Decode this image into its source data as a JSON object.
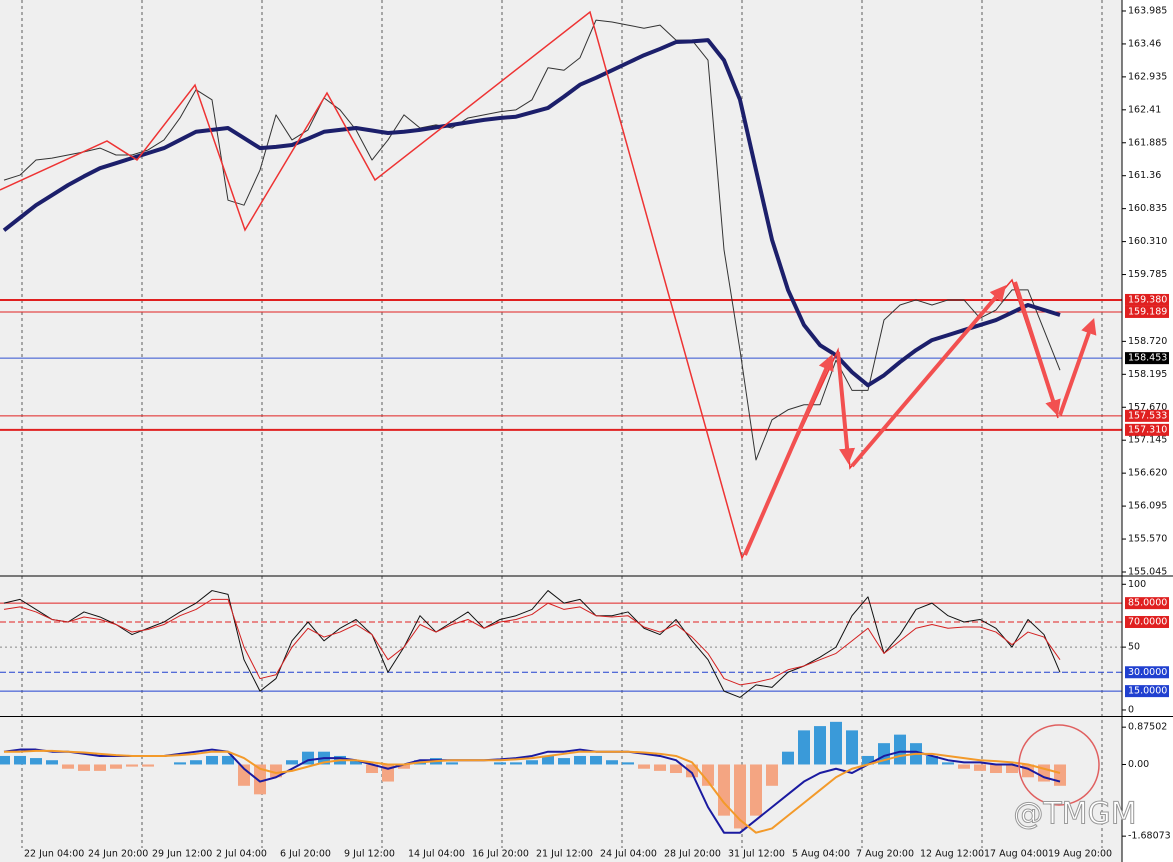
{
  "chart_data": [
    {
      "type": "line",
      "ylim": [
        154.997,
        164.16
      ],
      "yticks": [
        163.985,
        163.46,
        162.935,
        162.41,
        161.885,
        161.36,
        160.835,
        {
          "value": 160.31,
          "label": "160.310"
        },
        159.785,
        {
          "value": 158.72,
          "label": "158.720"
        },
        158.195,
        {
          "value": 157.67,
          "label": "157.670"
        },
        157.145,
        {
          "value": 156.62,
          "label": "156.620"
        },
        156.095,
        {
          "value": 155.57,
          "label": "155.570"
        },
        155.045
      ],
      "series": [
        {
          "color": "#333333",
          "values": [
            161.29,
            161.37,
            161.61,
            161.64,
            161.69,
            161.74,
            161.8,
            161.69,
            161.69,
            161.77,
            161.93,
            162.28,
            162.73,
            162.57,
            160.97,
            160.89,
            161.45,
            162.33,
            161.93,
            162.09,
            162.6,
            162.41,
            162.09,
            161.61,
            161.93,
            162.33,
            162.12,
            162.17,
            162.12,
            162.28,
            162.33,
            162.38,
            162.41,
            162.57,
            163.08,
            163.04,
            163.24,
            163.84,
            163.81,
            163.76,
            163.71,
            163.76,
            163.52,
            163.52,
            163.2,
            160.18,
            158.58,
            156.83,
            157.47,
            157.63,
            157.71,
            157.71,
            158.42,
            157.94,
            157.94,
            159.06,
            159.3,
            159.38,
            159.3,
            159.38,
            159.38,
            159.09,
            159.22,
            159.54,
            159.54,
            158.9,
            158.26
          ]
        },
        {
          "color": "#1c1f6b",
          "values": [
            160.49,
            160.69,
            160.89,
            161.05,
            161.21,
            161.35,
            161.48,
            161.56,
            161.64,
            161.72,
            161.8,
            161.93,
            162.06,
            162.09,
            162.12,
            161.96,
            161.8,
            161.82,
            161.85,
            161.95,
            162.06,
            162.09,
            162.12,
            162.08,
            162.04,
            162.06,
            162.09,
            162.13,
            162.17,
            162.21,
            162.25,
            162.28,
            162.3,
            162.37,
            162.44,
            162.62,
            162.81,
            162.92,
            163.04,
            163.16,
            163.28,
            163.38,
            163.49,
            163.5,
            163.52,
            163.2,
            162.57,
            161.45,
            160.34,
            159.54,
            158.98,
            158.66,
            158.5,
            158.23,
            158.02,
            158.18,
            158.39,
            158.58,
            158.74,
            158.82,
            158.9,
            158.98,
            159.06,
            159.18,
            159.3,
            159.22,
            159.14
          ]
        }
      ],
      "levels": [
        {
          "value": 159.38,
          "label": "159.380",
          "color": "#e02020",
          "width": 2
        },
        {
          "value": 159.189,
          "label": "159.189",
          "color": "#e02020",
          "width": 1
        },
        {
          "value": 158.453,
          "label": "158.453",
          "color": "#3050d0",
          "width": 1
        },
        {
          "value": 157.533,
          "label": "157.533",
          "color": "#e02020",
          "width": 1
        },
        {
          "value": 157.31,
          "label": "157.310",
          "color": "#e02020",
          "width": 2
        }
      ]
    },
    {
      "type": "line",
      "ylim": [
        -4,
        105
      ],
      "yticks": [
        100,
        50,
        0
      ],
      "series": [
        {
          "color": "#111111",
          "values": [
            85,
            88,
            80,
            72,
            70,
            78,
            74,
            68,
            60,
            65,
            70,
            78,
            85,
            95,
            92,
            40,
            15,
            25,
            55,
            70,
            55,
            65,
            72,
            60,
            30,
            50,
            75,
            62,
            70,
            78,
            65,
            72,
            75,
            80,
            95,
            85,
            88,
            75,
            75,
            78,
            65,
            60,
            72,
            55,
            40,
            15,
            10,
            20,
            18,
            30,
            35,
            42,
            50,
            75,
            90,
            45,
            60,
            80,
            85,
            75,
            70,
            72,
            65,
            50,
            72,
            60,
            30
          ]
        },
        {
          "color": "#d42020",
          "values": [
            80,
            82,
            78,
            72,
            70,
            74,
            72,
            68,
            62,
            64,
            68,
            75,
            80,
            88,
            88,
            50,
            25,
            28,
            50,
            65,
            58,
            62,
            68,
            60,
            40,
            50,
            68,
            62,
            68,
            72,
            65,
            70,
            72,
            76,
            85,
            80,
            82,
            75,
            74,
            75,
            66,
            62,
            68,
            58,
            45,
            25,
            20,
            22,
            25,
            32,
            35,
            40,
            45,
            55,
            65,
            45,
            55,
            65,
            68,
            65,
            66,
            66,
            62,
            52,
            62,
            58,
            40
          ]
        }
      ],
      "levels": [
        {
          "value": 85,
          "label": "85.0000",
          "color": "#e02020",
          "dash": false
        },
        {
          "value": 70,
          "label": "70.0000",
          "color": "#e02020",
          "dash": true
        },
        {
          "value": 30,
          "label": "30.0000",
          "color": "#2040d0",
          "dash": true
        },
        {
          "value": 15,
          "label": "15.0000",
          "color": "#2040d0",
          "dash": false
        }
      ]
    },
    {
      "type": "bar",
      "ylim": [
        -2.24,
        1.09
      ],
      "yticks": [
        0.87502,
        {
          "value": 0,
          "label": "0.00"
        },
        -1.68073
      ],
      "categories": [
        null,
        "22 Jun 04:00",
        null,
        null,
        null,
        "24 Jun 20:00",
        null,
        null,
        null,
        "29 Jun 12:00",
        null,
        null,
        null,
        "2 Jul 04:00",
        null,
        null,
        null,
        "6 Jul 20:00",
        null,
        null,
        null,
        "9 Jul 12:00",
        null,
        null,
        null,
        "14 Jul 04:00",
        null,
        null,
        null,
        "16 Jul 20:00",
        null,
        null,
        null,
        "21 Jul 12:00",
        null,
        null,
        null,
        "24 Jul 04:00",
        null,
        null,
        null,
        "28 Jul 20:00",
        null,
        null,
        null,
        "31 Jul 12:00",
        null,
        null,
        null,
        "5 Aug 04:00",
        null,
        null,
        null,
        "7 Aug 20:00",
        null,
        null,
        null,
        "12 Aug 12:00",
        null,
        null,
        null,
        "17 Aug 04:00",
        null,
        null,
        null,
        "19 Aug 20:00",
        null
      ],
      "values": [
        0.2,
        0.2,
        0.15,
        0.1,
        -0.1,
        -0.15,
        -0.15,
        -0.1,
        -0.05,
        -0.05,
        0,
        0.05,
        0.1,
        0.2,
        0.2,
        -0.5,
        -0.7,
        -0.3,
        0.1,
        0.3,
        0.3,
        0.2,
        0.1,
        -0.2,
        -0.4,
        -0.1,
        0.1,
        0.15,
        0.05,
        0,
        0,
        0.05,
        0.05,
        0.1,
        0.2,
        0.15,
        0.2,
        0.2,
        0.1,
        0.05,
        -0.1,
        -0.15,
        -0.2,
        -0.3,
        -0.5,
        -1.2,
        -1.5,
        -1.2,
        -0.5,
        0.3,
        0.8,
        0.9,
        1.0,
        0.8,
        0.2,
        0.5,
        0.7,
        0.5,
        0.2,
        0.05,
        -0.1,
        -0.15,
        -0.2,
        -0.2,
        -0.3,
        -0.4,
        -0.5
      ],
      "up_color": "#3a9ad9",
      "down_color": "#f4a582",
      "series": [
        {
          "color": "#1a1aa0",
          "values": [
            0.3,
            0.35,
            0.35,
            0.3,
            0.3,
            0.25,
            0.2,
            0.2,
            0.2,
            0.2,
            0.2,
            0.25,
            0.3,
            0.35,
            0.3,
            -0.1,
            -0.4,
            -0.3,
            -0.1,
            0.1,
            0.15,
            0.15,
            0.1,
            0,
            -0.1,
            0,
            0.1,
            0.1,
            0.1,
            0.1,
            0.1,
            0.12,
            0.15,
            0.2,
            0.3,
            0.3,
            0.35,
            0.3,
            0.3,
            0.3,
            0.25,
            0.2,
            0.1,
            -0.2,
            -1.0,
            -1.6,
            -1.6,
            -1.3,
            -1.0,
            -0.7,
            -0.4,
            -0.2,
            -0.1,
            -0.2,
            0,
            0.2,
            0.3,
            0.3,
            0.2,
            0.1,
            0.05,
            0.05,
            0,
            0,
            -0.1,
            -0.3,
            -0.4
          ]
        },
        {
          "color": "#f39a2a",
          "values": [
            0.3,
            0.3,
            0.32,
            0.32,
            0.3,
            0.28,
            0.25,
            0.22,
            0.2,
            0.2,
            0.2,
            0.22,
            0.25,
            0.3,
            0.3,
            0.15,
            -0.1,
            -0.2,
            -0.15,
            -0.05,
            0.05,
            0.1,
            0.1,
            0.05,
            0,
            0,
            0.05,
            0.08,
            0.1,
            0.1,
            0.1,
            0.1,
            0.12,
            0.15,
            0.2,
            0.25,
            0.3,
            0.3,
            0.3,
            0.3,
            0.28,
            0.25,
            0.2,
            0.05,
            -0.4,
            -0.9,
            -1.3,
            -1.6,
            -1.5,
            -1.2,
            -0.9,
            -0.6,
            -0.3,
            -0.1,
            0,
            0.1,
            0.2,
            0.25,
            0.25,
            0.2,
            0.15,
            0.1,
            0.08,
            0.05,
            0,
            -0.1,
            -0.2
          ]
        }
      ]
    }
  ],
  "watermark": "@TMGM"
}
